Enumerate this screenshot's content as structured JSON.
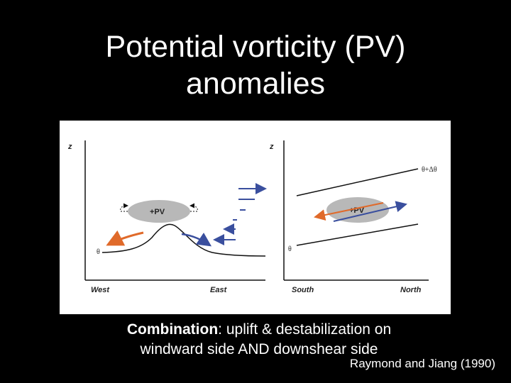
{
  "slide": {
    "title_line1": "Potential vorticity (PV)",
    "title_line2": "anomalies",
    "caption_bold": "Combination",
    "caption_rest_line1": ": uplift & destabilization on",
    "caption_line2": "windward side AND downshear side",
    "citation": "Raymond and Jiang (1990)"
  },
  "figure": {
    "left_panel": {
      "z_label": "z",
      "x_left": "West",
      "x_right": "East",
      "pv_label": "+PV",
      "theta_label": "θ"
    },
    "right_panel": {
      "z_label": "z",
      "x_left": "South",
      "x_right": "North",
      "pv_label": "+PV",
      "theta_label": "θ",
      "theta_upper_label": "θ+Δθ"
    },
    "colors": {
      "pv_ellipse": "#b8b8b8",
      "blue_arrow": "#3a4f9e",
      "orange_arrow": "#e06a2a"
    }
  }
}
